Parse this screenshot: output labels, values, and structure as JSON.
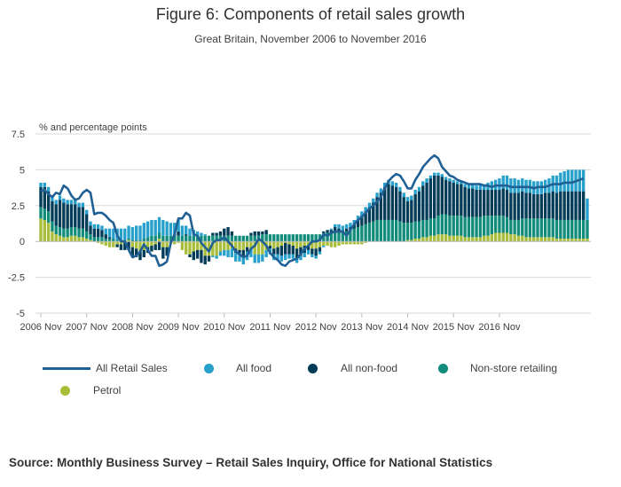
{
  "chart_data": {
    "type": "bar",
    "title": "Figure 6: Components of retail sales growth",
    "subtitle": "Great Britain, November 2006 to November 2016",
    "ylabel": "% and percentage points",
    "xlabel": "",
    "ylim": [
      -5,
      7.5
    ],
    "yticks": [
      7.5,
      5,
      2.5,
      0,
      -2.5,
      -5
    ],
    "ytick_labels": [
      "7.5",
      "5",
      "2.5",
      "0",
      "-2.5",
      "-5"
    ],
    "x_tick_labels": [
      "2006 Nov",
      "2007 Nov",
      "2008 Nov",
      "2009 Nov",
      "2010 Nov",
      "2011 Nov",
      "2012 Nov",
      "2013 Nov",
      "2014 Nov",
      "2015 Nov",
      "2016 Nov"
    ],
    "stacked": true,
    "grid": "horizontal",
    "source": "Source: Monthly Business Survey – Retail Sales Inquiry, Office for National Statistics",
    "legend_position": "bottom",
    "colors": {
      "all_retail_sales": "#206095",
      "all_food": "#27a0cc",
      "all_non_food": "#003c57",
      "non_store": "#118c7b",
      "petrol": "#a8bd3a"
    },
    "legend": {
      "all_retail_sales": "All Retail Sales",
      "all_food": "All food",
      "all_non_food": "All non-food",
      "non_store": "Non-store retailing",
      "petrol": "Petrol"
    },
    "periods_per_year": 12,
    "series": [
      {
        "name": "All food",
        "key": "all_food",
        "values": [
          0.3,
          0.3,
          0.3,
          0.3,
          0.3,
          0.3,
          0.3,
          0.3,
          0.3,
          0.3,
          0.3,
          0.3,
          0.3,
          0.3,
          0.3,
          0.3,
          0.3,
          0.4,
          0.6,
          0.7,
          0.8,
          0.8,
          0.8,
          0.9,
          0.9,
          1.0,
          1.0,
          1.1,
          1.1,
          1.1,
          1.1,
          1.1,
          1.1,
          1.0,
          0.9,
          0.8,
          0.8,
          0.7,
          0.6,
          0.5,
          0.4,
          0.3,
          0.2,
          0.1,
          0.0,
          -0.1,
          -0.2,
          -0.3,
          -0.4,
          -0.5,
          -0.6,
          -0.6,
          -0.6,
          -0.6,
          -0.6,
          -0.6,
          -0.6,
          -0.6,
          -0.5,
          -0.5,
          -0.4,
          -0.4,
          -0.4,
          -0.4,
          -0.4,
          -0.3,
          -0.3,
          -0.3,
          -0.3,
          -0.3,
          -0.3,
          -0.2,
          -0.2,
          -0.2,
          -0.1,
          0.0,
          0.1,
          0.2,
          0.3,
          0.3,
          0.3,
          0.3,
          0.3,
          0.3,
          0.3,
          0.3,
          0.3,
          0.3,
          0.3,
          0.3,
          0.3,
          0.3,
          0.3,
          0.3,
          0.3,
          0.3,
          0.3,
          0.3,
          0.3,
          0.3,
          0.3,
          0.3,
          0.2,
          0.2,
          0.2,
          0.2,
          0.2,
          0.2,
          0.2,
          0.2,
          0.2,
          0.2,
          0.3,
          0.3,
          0.3,
          0.4,
          0.4,
          0.5,
          0.6,
          0.7,
          0.8,
          0.9,
          1.0,
          1.0,
          1.0,
          0.9,
          0.9,
          0.9,
          0.9,
          0.9,
          0.9,
          0.9,
          0.9,
          1.0,
          1.1,
          1.2,
          1.3,
          1.4,
          1.5,
          1.5,
          1.5,
          1.5,
          1.5,
          1.5
        ]
      },
      {
        "name": "All non-food",
        "key": "all_non_food",
        "values": [
          1.4,
          1.5,
          1.4,
          1.4,
          1.5,
          1.9,
          1.8,
          1.7,
          1.6,
          1.6,
          1.5,
          1.5,
          1.2,
          0.6,
          0.6,
          0.6,
          0.5,
          0.3,
          0.1,
          0.0,
          -0.2,
          -0.4,
          -0.5,
          -0.6,
          -0.7,
          -0.6,
          -0.6,
          -0.5,
          -0.4,
          -0.4,
          -0.4,
          -0.6,
          -0.8,
          -0.6,
          0.0,
          0.1,
          0.3,
          0.0,
          0.1,
          -0.2,
          -0.6,
          -0.6,
          -0.9,
          -0.6,
          -0.4,
          0.2,
          0.2,
          0.3,
          0.5,
          0.6,
          0.3,
          -0.3,
          -0.2,
          -0.4,
          -0.3,
          0.2,
          0.3,
          0.3,
          0.2,
          0.3,
          -0.2,
          -0.4,
          -0.5,
          -0.7,
          -0.8,
          -0.7,
          -0.6,
          -0.7,
          -0.6,
          -0.5,
          -0.3,
          -0.4,
          -0.5,
          -0.3,
          0.1,
          0.2,
          0.2,
          0.4,
          0.3,
          0.2,
          0.2,
          0.2,
          0.3,
          0.5,
          0.7,
          0.9,
          1.1,
          1.3,
          1.6,
          1.9,
          2.3,
          2.5,
          2.4,
          2.3,
          2.1,
          1.8,
          1.5,
          1.6,
          1.9,
          2.1,
          2.4,
          2.6,
          2.8,
          3.0,
          2.8,
          2.6,
          2.4,
          2.4,
          2.3,
          2.2,
          2.2,
          2.1,
          2.0,
          2.0,
          1.9,
          1.9,
          1.8,
          1.8,
          1.8,
          1.8,
          1.8,
          1.9,
          1.9,
          1.9,
          1.9,
          1.9,
          1.9,
          1.8,
          1.8,
          1.7,
          1.7,
          1.7,
          1.8,
          1.8,
          1.9,
          1.9,
          2.0,
          2.0,
          2.0,
          2.0,
          2.0,
          2.0,
          2.0
        ]
      },
      {
        "name": "Non-store retailing",
        "key": "non_store",
        "values": [
          0.8,
          0.8,
          0.8,
          0.7,
          0.6,
          0.6,
          0.6,
          0.6,
          0.6,
          0.6,
          0.6,
          0.6,
          0.5,
          0.4,
          0.3,
          0.3,
          0.3,
          0.2,
          0.2,
          0.2,
          0.1,
          0.1,
          0.1,
          0.1,
          0.1,
          0.1,
          0.1,
          0.2,
          0.3,
          0.4,
          0.4,
          0.4,
          0.4,
          0.4,
          0.4,
          0.4,
          0.4,
          0.4,
          0.4,
          0.4,
          0.4,
          0.4,
          0.4,
          0.4,
          0.4,
          0.4,
          0.4,
          0.4,
          0.4,
          0.4,
          0.4,
          0.4,
          0.4,
          0.4,
          0.4,
          0.4,
          0.4,
          0.4,
          0.5,
          0.5,
          0.5,
          0.5,
          0.5,
          0.5,
          0.5,
          0.5,
          0.5,
          0.5,
          0.5,
          0.5,
          0.5,
          0.5,
          0.5,
          0.5,
          0.6,
          0.6,
          0.6,
          0.6,
          0.6,
          0.6,
          0.7,
          0.8,
          0.9,
          1.0,
          1.1,
          1.2,
          1.3,
          1.4,
          1.5,
          1.5,
          1.5,
          1.5,
          1.5,
          1.5,
          1.4,
          1.3,
          1.2,
          1.2,
          1.2,
          1.2,
          1.2,
          1.2,
          1.2,
          1.2,
          1.3,
          1.4,
          1.4,
          1.4,
          1.4,
          1.4,
          1.4,
          1.4,
          1.4,
          1.4,
          1.4,
          1.4,
          1.4,
          1.4,
          1.3,
          1.2,
          1.2,
          1.2,
          1.1,
          1.0,
          1.0,
          1.1,
          1.2,
          1.3,
          1.3,
          1.3,
          1.3,
          1.3,
          1.3,
          1.3,
          1.3,
          1.3,
          1.3,
          1.3,
          1.3,
          1.3,
          1.3,
          1.3,
          1.3,
          1.3,
          1.3
        ]
      },
      {
        "name": "Petrol",
        "key": "petrol",
        "values": [
          1.6,
          1.5,
          1.3,
          0.7,
          0.5,
          0.4,
          0.3,
          0.3,
          0.4,
          0.4,
          0.3,
          0.3,
          0.2,
          0.1,
          0.0,
          -0.1,
          -0.2,
          -0.3,
          -0.4,
          -0.4,
          -0.2,
          -0.2,
          -0.1,
          0.1,
          -0.4,
          -0.5,
          -0.7,
          -0.6,
          -0.4,
          -0.3,
          -0.2,
          0.2,
          -0.4,
          -0.4,
          -0.2,
          -0.2,
          -0.1,
          -0.6,
          -0.9,
          -0.9,
          -0.7,
          -0.6,
          -0.6,
          -1.0,
          -1.0,
          -1.0,
          -1.0,
          -0.7,
          -0.6,
          -0.6,
          -0.5,
          -0.5,
          -0.6,
          -0.6,
          -0.4,
          -0.5,
          -0.9,
          -0.9,
          -0.9,
          -0.6,
          -0.3,
          -0.5,
          -0.4,
          -0.3,
          -0.1,
          -0.2,
          -0.3,
          -0.5,
          -0.4,
          -0.3,
          -0.3,
          -0.5,
          -0.5,
          -0.4,
          -0.3,
          -0.3,
          -0.4,
          -0.4,
          -0.3,
          -0.2,
          -0.2,
          -0.2,
          -0.2,
          -0.2,
          -0.2,
          -0.1,
          0.0,
          0.0,
          0.0,
          0.0,
          0.0,
          0.0,
          0.0,
          0.0,
          0.0,
          0.0,
          0.1,
          0.1,
          0.2,
          0.2,
          0.3,
          0.3,
          0.4,
          0.4,
          0.5,
          0.5,
          0.5,
          0.4,
          0.4,
          0.4,
          0.4,
          0.3,
          0.3,
          0.3,
          0.3,
          0.3,
          0.4,
          0.4,
          0.5,
          0.6,
          0.6,
          0.6,
          0.6,
          0.5,
          0.5,
          0.4,
          0.4,
          0.3,
          0.3,
          0.3,
          0.3,
          0.3,
          0.3,
          0.3,
          0.3,
          0.2,
          0.2,
          0.2,
          0.2,
          0.2,
          0.2,
          0.2,
          0.2,
          0.2,
          0.2
        ]
      },
      {
        "name": "All Retail Sales",
        "key": "all_retail_sales",
        "type": "line",
        "values": [
          3.5,
          3.6,
          3.3,
          3.1,
          3.4,
          3.3,
          3.9,
          3.7,
          3.2,
          2.9,
          3.0,
          3.4,
          3.6,
          3.4,
          1.9,
          2.0,
          2.0,
          1.8,
          1.5,
          1.3,
          0.4,
          0.0,
          0.0,
          -0.6,
          -1.1,
          -1.0,
          -0.7,
          -0.2,
          -0.6,
          -1.0,
          -1.0,
          -1.7,
          -1.6,
          -1.4,
          -0.1,
          0.5,
          1.6,
          1.6,
          2.0,
          1.8,
          0.5,
          0.4,
          -0.1,
          -0.4,
          -0.7,
          -0.1,
          0.1,
          0.1,
          0.3,
          0.0,
          -0.3,
          -0.7,
          -0.9,
          -1.1,
          -1.0,
          -0.5,
          -0.3,
          0.2,
          0.0,
          -0.3,
          -0.8,
          -1.1,
          -1.3,
          -1.6,
          -1.7,
          -1.4,
          -1.3,
          -1.2,
          -0.9,
          -0.5,
          -0.3,
          0.0,
          0.0,
          0.1,
          0.5,
          0.4,
          0.6,
          0.7,
          0.7,
          0.7,
          0.4,
          0.8,
          1.2,
          1.5,
          1.7,
          2.0,
          2.3,
          2.5,
          2.8,
          3.1,
          3.7,
          4.2,
          4.5,
          4.7,
          4.6,
          4.2,
          3.7,
          3.7,
          4.3,
          4.7,
          5.2,
          5.5,
          5.8,
          6.0,
          5.8,
          5.2,
          4.9,
          4.6,
          4.5,
          4.3,
          4.2,
          4.1,
          4.0,
          4.0,
          4.0,
          4.0,
          3.9,
          3.9,
          3.8,
          3.9,
          3.9,
          3.9,
          3.9,
          3.8,
          3.8,
          3.8,
          3.8,
          3.8,
          3.8,
          3.7,
          3.8,
          3.8,
          3.8,
          3.9,
          4.0,
          4.0,
          4.0,
          4.1,
          4.1,
          4.1,
          4.2,
          4.3,
          4.4
        ]
      }
    ]
  }
}
